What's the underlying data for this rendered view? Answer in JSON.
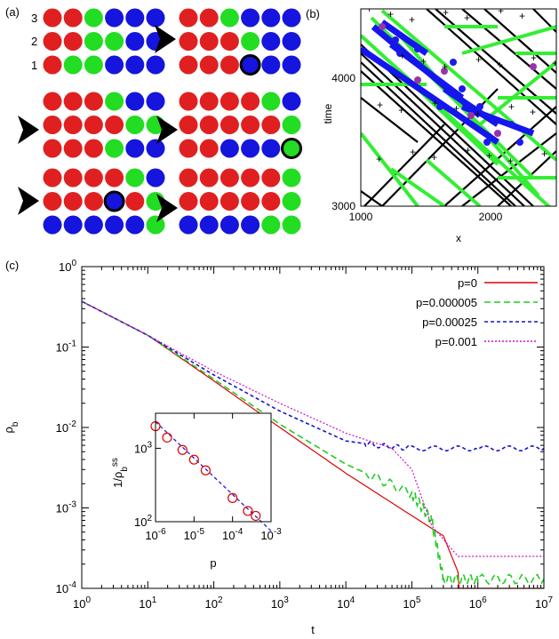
{
  "panels": {
    "a": {
      "label": "(a)",
      "row_labels": [
        "3",
        "2",
        "1"
      ],
      "colors": {
        "R": "#e02020",
        "G": "#22dd22",
        "B": "#1515dd"
      },
      "frames": [
        {
          "rows": [
            "RRGBBB",
            "RRGGBB",
            "RGGBBB"
          ],
          "marked": null
        },
        {
          "rows": [
            "RRGBBB",
            "RRRGBB",
            "RRRBBB"
          ],
          "marked": [
            2,
            3
          ]
        },
        {
          "rows": [
            "RRRGBB",
            "RRRRGG",
            "RRRGBB"
          ],
          "marked": null
        },
        {
          "rows": [
            "RRRRGB",
            "RRRRRG",
            "RRBBBG"
          ],
          "marked": [
            2,
            5
          ]
        },
        {
          "rows": [
            "RRRRGB",
            "RRRBRG",
            "BBBBBG"
          ],
          "marked": [
            1,
            3
          ]
        },
        {
          "rows": [
            "RRRRRG",
            "RRRRRG",
            "BBBBGG"
          ],
          "marked": null
        }
      ]
    },
    "b": {
      "label": "(b)",
      "xlabel": "x",
      "ylabel": "time",
      "xticks": [
        "1000",
        "2000"
      ],
      "yticks": [
        "3000",
        "4000"
      ]
    },
    "c": {
      "label": "(c)"
    }
  },
  "chart_data": [
    {
      "type": "line",
      "panel": "(c)",
      "xlabel": "t",
      "ylabel": "ρ_b",
      "xscale": "log",
      "yscale": "log",
      "xlim": [
        1,
        10000000
      ],
      "ylim": [
        0.0001,
        1
      ],
      "xticks": [
        "10^0",
        "10^1",
        "10^2",
        "10^3",
        "10^4",
        "10^5",
        "10^6",
        "10^7"
      ],
      "yticks": [
        "10^-4",
        "10^-3",
        "10^-2",
        "10^-1",
        "10^0"
      ],
      "legend_position": "top-right",
      "series": [
        {
          "name": "p=0",
          "color": "#dd0000",
          "dash": "solid",
          "x": [
            1,
            10,
            100,
            1000,
            10000,
            100000,
            300000,
            500000,
            520000,
            10000000
          ],
          "y": [
            0.37,
            0.14,
            0.038,
            0.01,
            0.0027,
            0.0008,
            0.00045,
            0.00016,
            0.0001,
            0.0001
          ]
        },
        {
          "name": "p=0.000005",
          "color": "#22cc22",
          "dash": "dashed",
          "x": [
            1,
            10,
            100,
            1000,
            10000,
            100000,
            200000,
            300000,
            1000000,
            10000000
          ],
          "y": [
            0.37,
            0.14,
            0.04,
            0.011,
            0.0035,
            0.0015,
            0.0007,
            0.00013,
            0.00013,
            0.00013
          ]
        },
        {
          "name": "p=0.00025",
          "color": "#1515cc",
          "dash": "short-dashed",
          "x": [
            1,
            10,
            100,
            1000,
            10000,
            30000,
            100000,
            1000000,
            10000000
          ],
          "y": [
            0.37,
            0.14,
            0.045,
            0.016,
            0.0068,
            0.006,
            0.0055,
            0.0055,
            0.0055
          ]
        },
        {
          "name": "p=0.001",
          "color": "#cc11cc",
          "dash": "dotted",
          "x": [
            1,
            10,
            100,
            1000,
            10000,
            50000,
            100000,
            200000,
            500000,
            10000000
          ],
          "y": [
            0.37,
            0.14,
            0.05,
            0.02,
            0.0085,
            0.0055,
            0.003,
            0.0006,
            0.00025,
            0.00025
          ]
        }
      ]
    },
    {
      "type": "scatter",
      "panel": "(c) inset",
      "xlabel": "p",
      "ylabel": "1/ρ_b^ss",
      "xscale": "log",
      "yscale": "log",
      "xlim": [
        1e-06,
        0.001
      ],
      "ylim": [
        100,
        3000
      ],
      "xticks": [
        "10^-6",
        "10^-5",
        "10^-4",
        "10^-3"
      ],
      "yticks": [
        "10^2",
        "10^3"
      ],
      "series": [
        {
          "type": "scatter",
          "color": "#dd0000",
          "x": [
            1e-06,
            2e-06,
            5e-06,
            1e-05,
            2e-05,
            0.0001,
            0.00025,
            0.0004
          ],
          "y": [
            2000,
            1400,
            950,
            700,
            500,
            210,
            140,
            120
          ]
        },
        {
          "type": "line",
          "color": "#2222cc",
          "dash": "dashed",
          "x": [
            1e-06,
            0.001
          ],
          "y": [
            2300,
            75
          ]
        }
      ]
    }
  ]
}
